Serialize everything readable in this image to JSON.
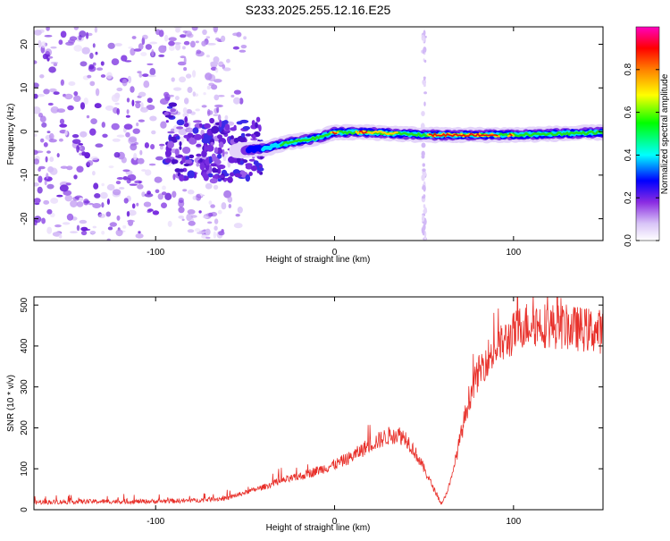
{
  "page_title": "S233.2025.255.12.16.E25",
  "chart_data": [
    {
      "type": "heatmap",
      "title": "S233.2025.255.12.16.E25",
      "xlabel": "Height of straight line (km)",
      "ylabel": "Frequency (Hz)",
      "xlim": [
        -168,
        150
      ],
      "ylim": [
        -25,
        24
      ],
      "x_ticks": [
        -100,
        0,
        100
      ],
      "y_ticks": [
        -20,
        -10,
        0,
        10,
        20
      ],
      "ridge_line": {
        "description_points_x": [
          -90,
          -60,
          -40,
          -25,
          -10,
          0,
          20,
          50,
          100,
          150
        ],
        "description_points_y": [
          -4,
          -4.5,
          -4,
          -2.5,
          -1.5,
          -0.2,
          -0.2,
          -0.8,
          -0.8,
          -0.2
        ]
      },
      "colorbar": {
        "label": "Normalized spectral amplitude",
        "range": [
          0.0,
          1.0
        ],
        "ticks": [
          0.0,
          0.2,
          0.4,
          0.6,
          0.8
        ],
        "tick_labels": [
          "0.0",
          "0.2",
          "0.4",
          "0.6",
          "0.8"
        ],
        "colors": [
          "#ffffff",
          "#c9a8f5",
          "#8a2be2",
          "#0000ff",
          "#00ffff",
          "#00ff00",
          "#ffff00",
          "#ff8000",
          "#ff0000",
          "#ff00c0"
        ]
      },
      "vertical_stripe_x": 50
    },
    {
      "type": "line",
      "xlabel": "Height of straight line (km)",
      "ylabel": "SNR (10 * v/v)",
      "xlim": [
        -168,
        150
      ],
      "ylim": [
        0,
        520
      ],
      "x_ticks": [
        -100,
        0,
        100
      ],
      "y_ticks": [
        0,
        100,
        200,
        300,
        400,
        500
      ],
      "series": [
        {
          "name": "SNR",
          "color": "#e8302a",
          "x": [
            -168,
            -140,
            -110,
            -80,
            -60,
            -50,
            -40,
            -30,
            -20,
            -10,
            0,
            10,
            20,
            30,
            35,
            40,
            45,
            50,
            55,
            60,
            65,
            70,
            75,
            80,
            85,
            90,
            95,
            100,
            105,
            110,
            120,
            130,
            140,
            150
          ],
          "y": [
            18,
            20,
            20,
            22,
            28,
            42,
            55,
            70,
            80,
            95,
            110,
            130,
            160,
            180,
            185,
            175,
            140,
            100,
            55,
            12,
            70,
            170,
            270,
            330,
            370,
            390,
            410,
            430,
            450,
            455,
            450,
            445,
            440,
            435
          ]
        }
      ]
    }
  ]
}
